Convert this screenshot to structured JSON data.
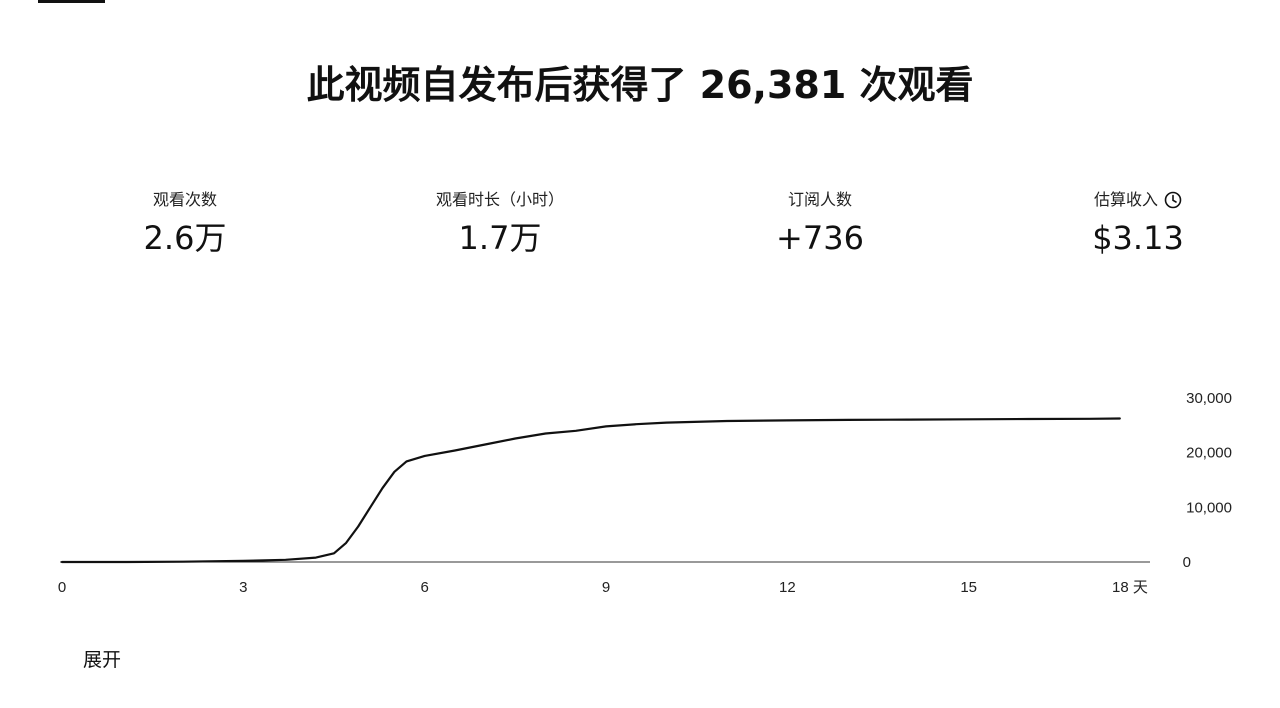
{
  "headline": "此视频自发布后获得了 26,381 次观看",
  "metrics": [
    {
      "label": "观看次数",
      "value": "2.6万"
    },
    {
      "label": "观看时长（小时）",
      "value": "1.7万"
    },
    {
      "label": "订阅人数",
      "value": "+736"
    },
    {
      "label": "估算收入",
      "value": "$3.13",
      "icon": "clock-icon"
    }
  ],
  "expand_label": "展开",
  "chart_data": {
    "type": "line",
    "title": "",
    "xlabel": "",
    "ylabel": "",
    "x_unit": "天",
    "xlim": [
      0,
      18
    ],
    "ylim": [
      0,
      30000
    ],
    "x_ticks": [
      {
        "value": 0,
        "label": "0"
      },
      {
        "value": 3,
        "label": "3"
      },
      {
        "value": 6,
        "label": "6"
      },
      {
        "value": 9,
        "label": "9"
      },
      {
        "value": 12,
        "label": "12"
      },
      {
        "value": 15,
        "label": "15"
      },
      {
        "value": 18,
        "label": "18 天"
      }
    ],
    "y_ticks": [
      {
        "value": 0,
        "label": "0"
      },
      {
        "value": 10000,
        "label": "10,000"
      },
      {
        "value": 20000,
        "label": "20,000"
      },
      {
        "value": 30000,
        "label": "30,000"
      }
    ],
    "grid": false,
    "axis_side": "right",
    "line_color": "#111111",
    "series": [
      {
        "x": [
          0,
          1,
          2,
          3,
          3.7,
          4.2,
          4.5,
          4.7,
          4.9,
          5.1,
          5.3,
          5.5,
          5.7,
          6.0,
          6.5,
          7.0,
          7.5,
          8.0,
          8.5,
          9.0,
          9.5,
          10,
          11,
          12,
          13,
          14,
          15,
          16,
          17,
          17.5
        ],
        "y": [
          0,
          0,
          50,
          200,
          400,
          800,
          1600,
          3500,
          6500,
          10000,
          13500,
          16500,
          18400,
          19400,
          20400,
          21500,
          22600,
          23500,
          24000,
          24800,
          25200,
          25500,
          25800,
          25900,
          26000,
          26050,
          26100,
          26150,
          26200,
          26250
        ]
      }
    ]
  }
}
